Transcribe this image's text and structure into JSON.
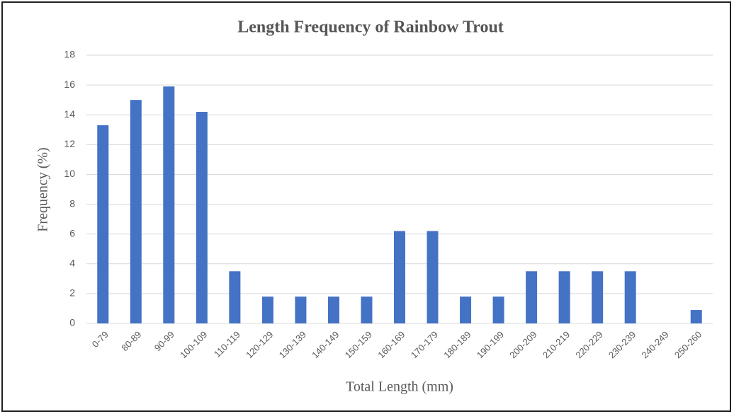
{
  "chart_data": {
    "type": "bar",
    "title": "Length Frequency of Rainbow Trout",
    "x_label": "Total Length (mm)",
    "y_label": "Frequency (%)",
    "categories": [
      "0-79",
      "80-89",
      "90-99",
      "100-109",
      "110-119",
      "120-129",
      "130-139",
      "140-149",
      "150-159",
      "160-169",
      "170-179",
      "180-189",
      "190-199",
      "200-209",
      "210-219",
      "220-229",
      "230-239",
      "240-249",
      "250-260"
    ],
    "values": [
      13.3,
      15.0,
      15.9,
      14.2,
      3.5,
      1.8,
      1.8,
      1.8,
      1.8,
      6.2,
      6.2,
      1.8,
      1.8,
      3.5,
      3.5,
      3.5,
      3.5,
      0,
      0.9
    ],
    "color": "#4472c4",
    "ylim": [
      0,
      18
    ],
    "yticks": [
      0,
      2,
      4,
      6,
      8,
      10,
      12,
      14,
      16,
      18
    ],
    "grid": true
  }
}
